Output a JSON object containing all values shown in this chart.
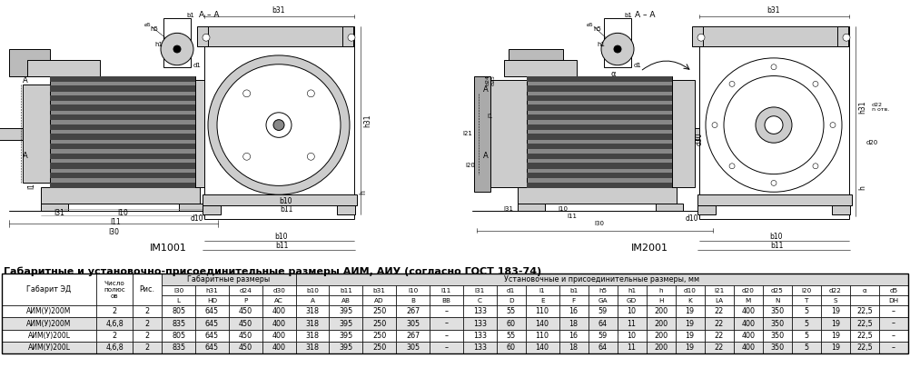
{
  "title": "Габаритные и установочно-присоединительные размеры АИМ, АИУ (согласно ГОСТ 183-74)",
  "header_row2": [
    "Габарит ЭД",
    "Число\nполюс\nов",
    "Рис.",
    "l30",
    "h31",
    "d24",
    "d30",
    "b10",
    "b11",
    "b31",
    "l10",
    "l11",
    "l31",
    "d1",
    "l1",
    "b1",
    "h5",
    "h1",
    "h",
    "d10",
    "l21",
    "d20",
    "d25",
    "l20",
    "d22",
    "α",
    "d5"
  ],
  "header_row3": [
    "",
    "",
    "",
    "L",
    "HD",
    "P",
    "AC",
    "A",
    "AB",
    "AD",
    "B",
    "BB",
    "C",
    "D",
    "E",
    "F",
    "GA",
    "GD",
    "H",
    "K",
    "LA",
    "M",
    "N",
    "T",
    "S",
    "",
    "DH"
  ],
  "data": [
    [
      "АИМ(У)200М",
      "2",
      "2",
      "805",
      "645",
      "450",
      "400",
      "318",
      "395",
      "250",
      "267",
      "–",
      "133",
      "55",
      "110",
      "16",
      "59",
      "10",
      "200",
      "19",
      "22",
      "400",
      "350",
      "5",
      "19",
      "22,5",
      "–"
    ],
    [
      "АИМ(У)200М",
      "4,6,8",
      "2",
      "835",
      "645",
      "450",
      "400",
      "318",
      "395",
      "250",
      "305",
      "–",
      "133",
      "60",
      "140",
      "18",
      "64",
      "11",
      "200",
      "19",
      "22",
      "400",
      "350",
      "5",
      "19",
      "22,5",
      "–"
    ],
    [
      "АИМ(У)200L",
      "2",
      "2",
      "805",
      "645",
      "450",
      "400",
      "318",
      "395",
      "250",
      "267",
      "–",
      "133",
      "55",
      "110",
      "16",
      "59",
      "10",
      "200",
      "19",
      "22",
      "400",
      "350",
      "5",
      "19",
      "22,5",
      "–"
    ],
    [
      "АИМ(У)200L",
      "4,6,8",
      "2",
      "835",
      "645",
      "450",
      "400",
      "318",
      "395",
      "250",
      "305",
      "–",
      "133",
      "60",
      "140",
      "18",
      "64",
      "11",
      "200",
      "19",
      "22",
      "400",
      "350",
      "5",
      "19",
      "22,5",
      "–"
    ]
  ],
  "col_widths": [
    6.5,
    2.5,
    2.0,
    2.3,
    2.3,
    2.3,
    2.3,
    2.3,
    2.3,
    2.3,
    2.3,
    2.3,
    2.3,
    2.0,
    2.3,
    2.0,
    2.0,
    2.0,
    2.0,
    2.0,
    2.0,
    2.0,
    2.0,
    2.0,
    2.0,
    2.0,
    2.0
  ],
  "bg_gabarit": "#d9d9d9",
  "bg_ustanovoch": "#d9d9d9",
  "row_colors": [
    "#ffffff",
    "#e0e0e0",
    "#ffffff",
    "#e0e0e0"
  ],
  "font_size_title": 8.0,
  "font_size_table": 5.8,
  "lw": 0.5
}
